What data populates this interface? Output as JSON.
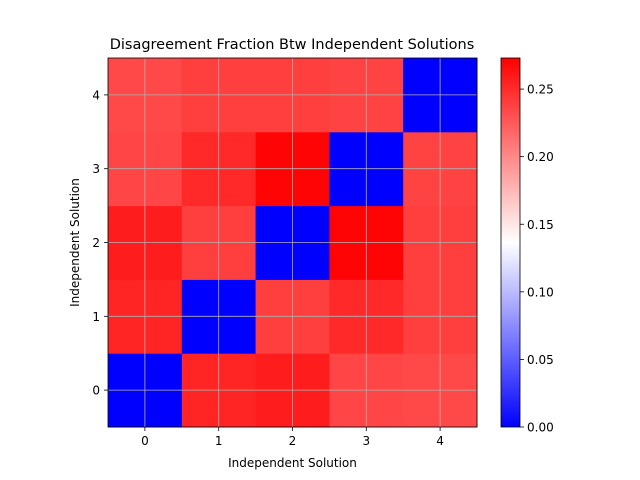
{
  "chart_data": {
    "type": "heatmap",
    "title": "Disagreement Fraction Btw Independent Solutions",
    "xlabel": "Independent Solution",
    "ylabel": "Independent Solution",
    "x_ticks": [
      "0",
      "1",
      "2",
      "3",
      "4"
    ],
    "y_ticks": [
      "0",
      "1",
      "2",
      "3",
      "4"
    ],
    "y_order": "bottom-to-top",
    "grid": true,
    "colormap": "bwr",
    "colormap_colors": [
      "#0000ff",
      "#ffffff",
      "#ff0000"
    ],
    "vmin": 0.0,
    "vmax": 0.273,
    "colorbar_ticks": [
      "0.00",
      "0.05",
      "0.10",
      "0.15",
      "0.20",
      "0.25"
    ],
    "values": [
      [
        0.0,
        0.253,
        0.258,
        0.236,
        0.234
      ],
      [
        0.253,
        0.0,
        0.24,
        0.251,
        0.24
      ],
      [
        0.258,
        0.24,
        0.0,
        0.271,
        0.24
      ],
      [
        0.236,
        0.251,
        0.271,
        0.0,
        0.237
      ],
      [
        0.234,
        0.24,
        0.24,
        0.237,
        0.0
      ]
    ]
  }
}
